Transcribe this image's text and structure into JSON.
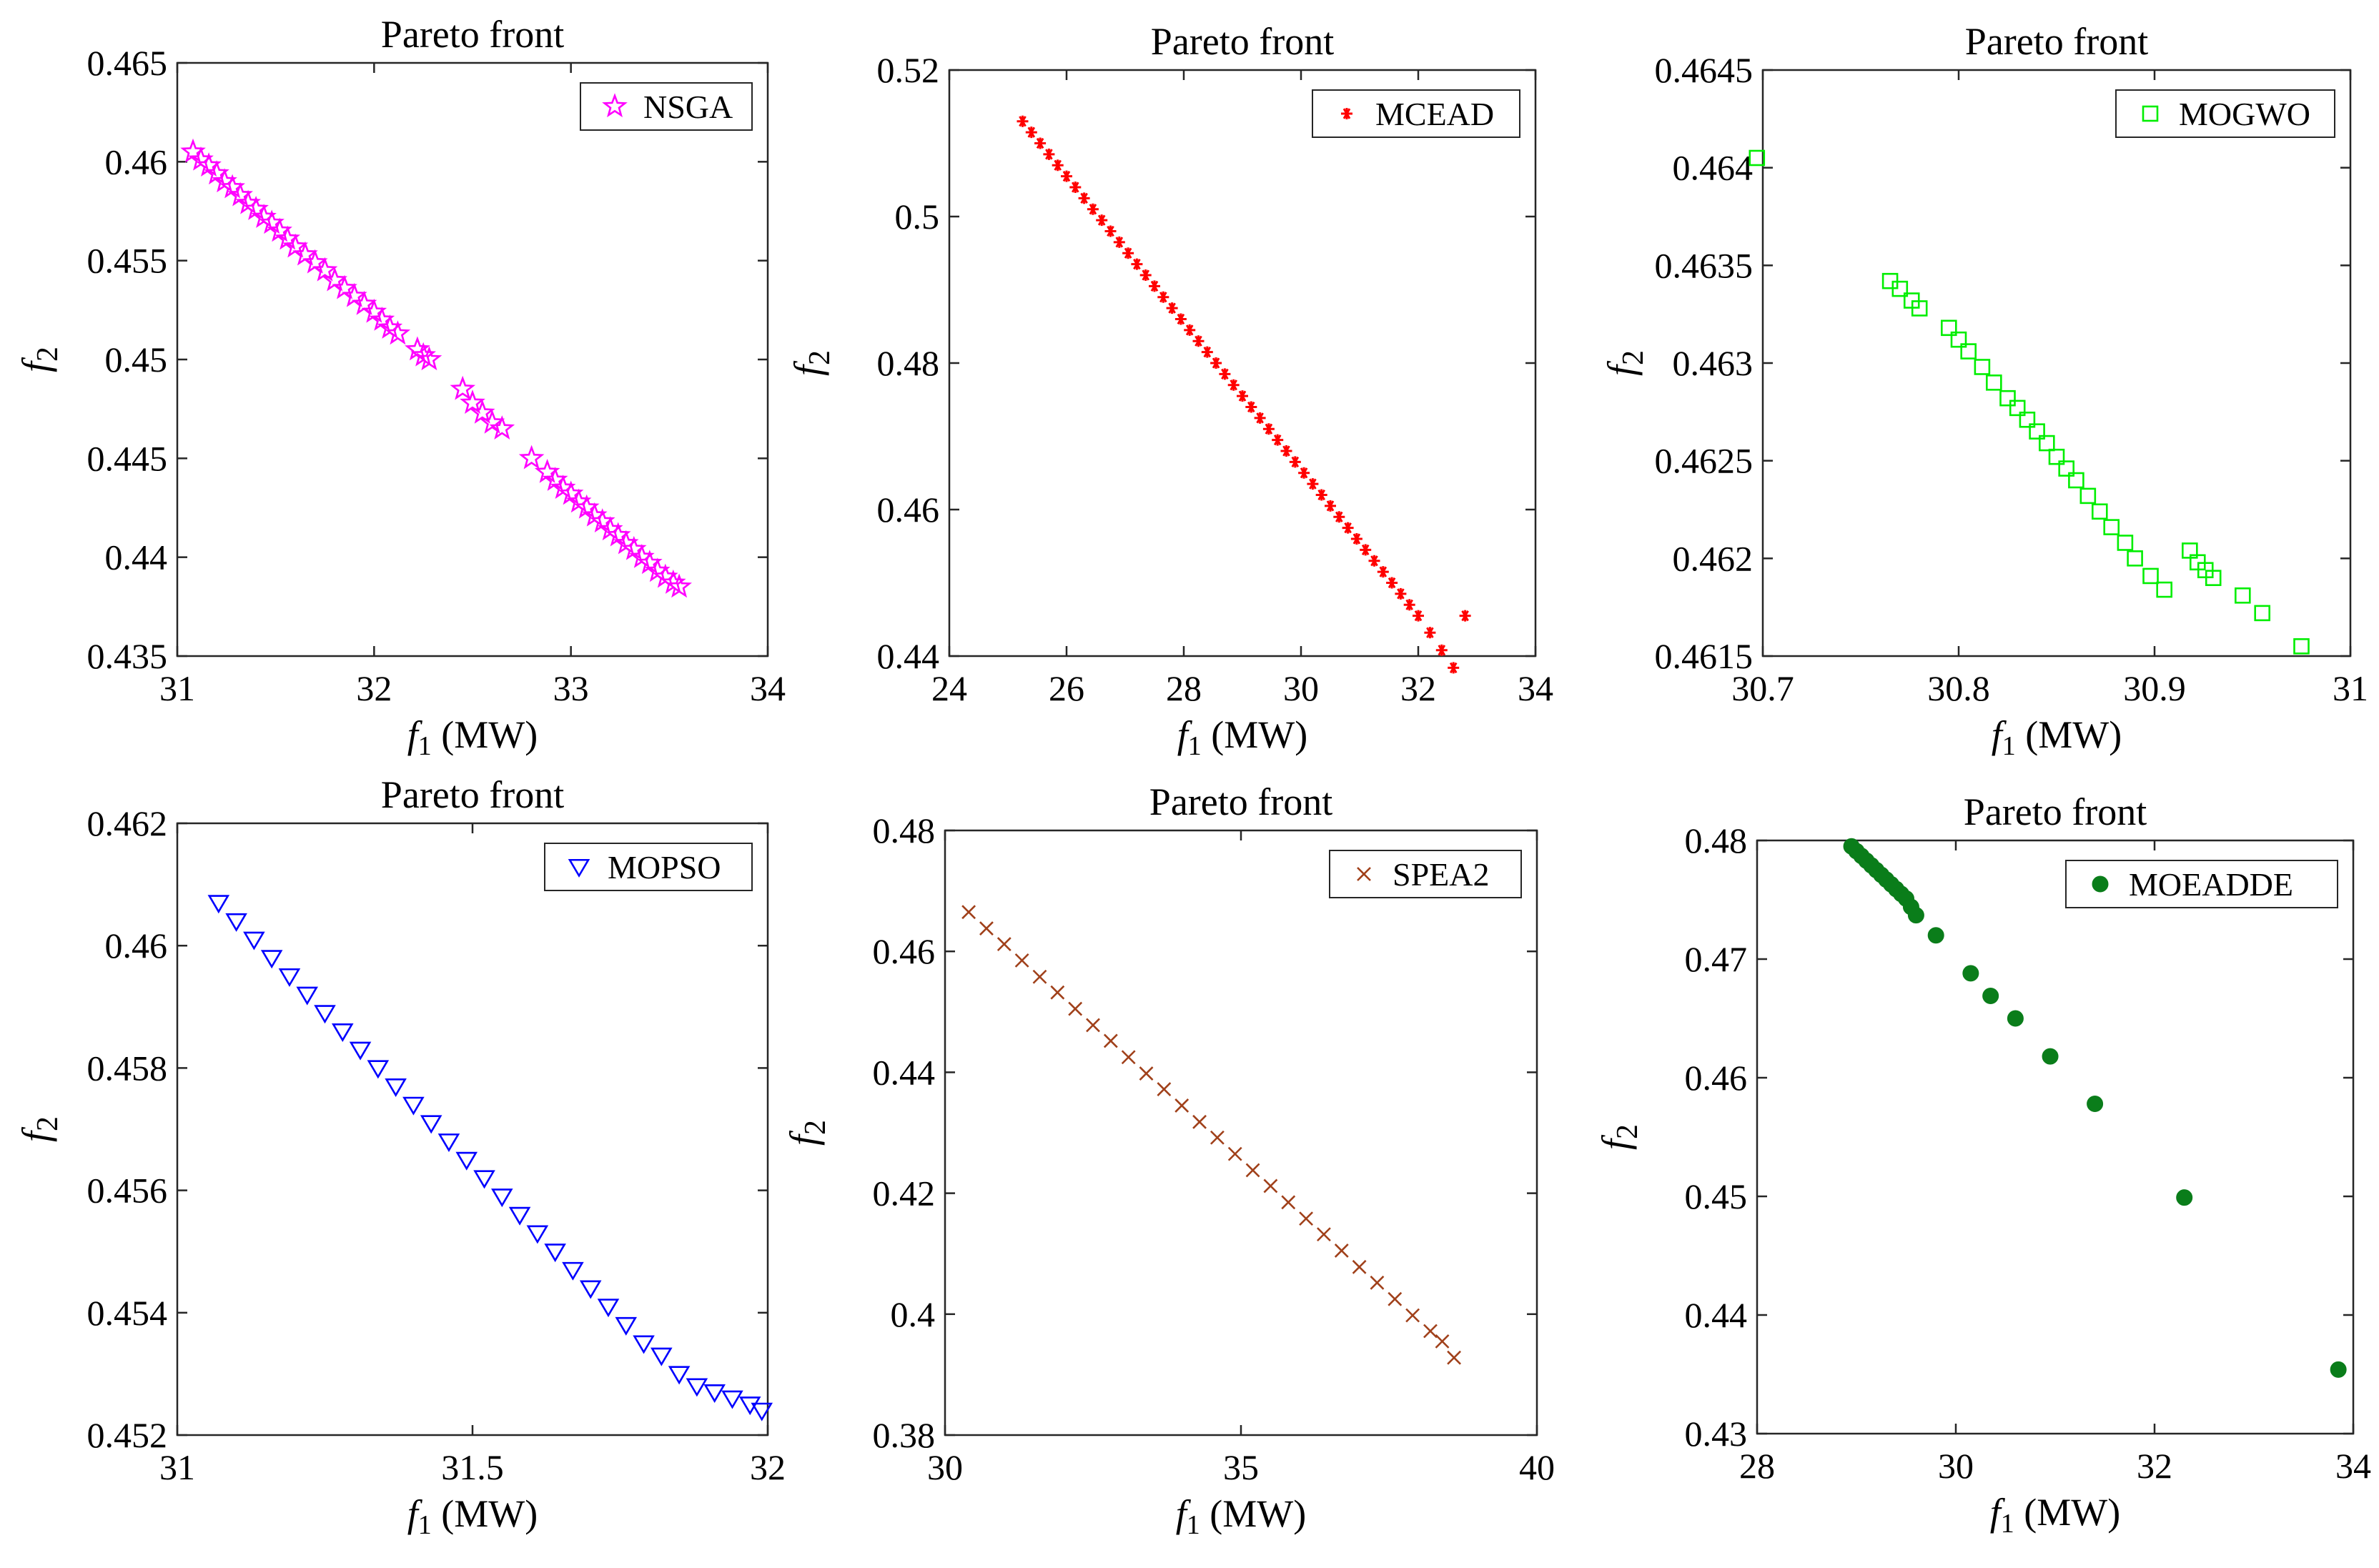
{
  "chart_data": [
    {
      "type": "scatter",
      "title": "Pareto front",
      "xlabel": "f1 (MW)",
      "ylabel": "f2",
      "xlim": [
        31,
        34
      ],
      "ylim": [
        0.435,
        0.465
      ],
      "xticks": [
        31,
        32,
        33,
        34
      ],
      "yticks": [
        0.435,
        0.44,
        0.445,
        0.45,
        0.455,
        0.46,
        0.465
      ],
      "xtick_labels": [
        "31",
        "32",
        "33",
        "34"
      ],
      "ytick_labels": [
        "0.435",
        "0.44",
        "0.445",
        "0.45",
        "0.455",
        "0.46",
        "0.465"
      ],
      "series": [
        {
          "name": "NSGA",
          "marker": "star",
          "color": "#ff00ff",
          "x": [
            31.08,
            31.12,
            31.16,
            31.2,
            31.24,
            31.28,
            31.32,
            31.36,
            31.4,
            31.44,
            31.48,
            31.52,
            31.56,
            31.6,
            31.65,
            31.7,
            31.75,
            31.8,
            31.85,
            31.9,
            31.95,
            32.0,
            32.04,
            32.08,
            32.12,
            32.22,
            32.25,
            32.28,
            32.45,
            32.5,
            32.55,
            32.6,
            32.65,
            32.8,
            32.88,
            32.92,
            32.96,
            33.0,
            33.04,
            33.08,
            33.12,
            33.16,
            33.2,
            33.24,
            33.28,
            33.32,
            33.36,
            33.4,
            33.44,
            33.48,
            33.52,
            33.55
          ],
          "y": [
            0.4605,
            0.4601,
            0.4598,
            0.4594,
            0.459,
            0.4587,
            0.4583,
            0.4579,
            0.4576,
            0.4572,
            0.4569,
            0.4565,
            0.4561,
            0.4557,
            0.4553,
            0.4549,
            0.4545,
            0.454,
            0.4536,
            0.4532,
            0.4528,
            0.4524,
            0.452,
            0.4516,
            0.4513,
            0.4505,
            0.4502,
            0.45,
            0.4485,
            0.4478,
            0.4473,
            0.4468,
            0.4465,
            0.445,
            0.4443,
            0.4439,
            0.4435,
            0.4432,
            0.4428,
            0.4425,
            0.4421,
            0.4418,
            0.4414,
            0.4411,
            0.4407,
            0.4404,
            0.44,
            0.4397,
            0.4393,
            0.439,
            0.4387,
            0.4385
          ]
        }
      ],
      "legend": "top-right"
    },
    {
      "type": "scatter",
      "title": "Pareto front",
      "xlabel": "f1 (MW)",
      "ylabel": "f2",
      "xlim": [
        24,
        34
      ],
      "ylim": [
        0.44,
        0.52
      ],
      "xticks": [
        24,
        26,
        28,
        30,
        32,
        34
      ],
      "yticks": [
        0.44,
        0.46,
        0.48,
        0.5,
        0.52
      ],
      "xtick_labels": [
        "24",
        "26",
        "28",
        "30",
        "32",
        "34"
      ],
      "ytick_labels": [
        "0.44",
        "0.46",
        "0.48",
        "0.5",
        "0.52"
      ],
      "series": [
        {
          "name": "MCEAD",
          "marker": "asterisk",
          "color": "#ff0000",
          "x": [
            25.25,
            25.4,
            25.55,
            25.7,
            25.85,
            26.0,
            26.15,
            26.3,
            26.45,
            26.6,
            26.75,
            26.9,
            27.05,
            27.2,
            27.35,
            27.5,
            27.65,
            27.8,
            27.95,
            28.1,
            28.25,
            28.4,
            28.55,
            28.7,
            28.85,
            29.0,
            29.15,
            29.3,
            29.45,
            29.6,
            29.75,
            29.9,
            30.05,
            30.2,
            30.35,
            30.5,
            30.65,
            30.8,
            30.95,
            31.1,
            31.25,
            31.4,
            31.55,
            31.7,
            31.85,
            32.0,
            32.2,
            32.4,
            32.6,
            32.8
          ],
          "y": [
            0.513,
            0.5115,
            0.51,
            0.5085,
            0.507,
            0.5055,
            0.504,
            0.5025,
            0.501,
            0.4995,
            0.498,
            0.4965,
            0.495,
            0.4935,
            0.492,
            0.4905,
            0.489,
            0.4875,
            0.486,
            0.4845,
            0.483,
            0.4815,
            0.48,
            0.4785,
            0.477,
            0.4755,
            0.474,
            0.4725,
            0.471,
            0.4695,
            0.468,
            0.4665,
            0.465,
            0.4635,
            0.462,
            0.4605,
            0.459,
            0.4575,
            0.456,
            0.4545,
            0.453,
            0.4515,
            0.45,
            0.4485,
            0.447,
            0.4455,
            0.4432,
            0.4408,
            0.4384,
            0.4455
          ]
        }
      ],
      "legend": "top-right"
    },
    {
      "type": "scatter",
      "title": "Pareto front",
      "xlabel": "f1 (MW)",
      "ylabel": "f2",
      "xlim": [
        30.7,
        31
      ],
      "ylim": [
        0.4615,
        0.4645
      ],
      "xticks": [
        30.7,
        30.8,
        30.9,
        31
      ],
      "yticks": [
        0.4615,
        0.462,
        0.4625,
        0.463,
        0.4635,
        0.464,
        0.4645
      ],
      "xtick_labels": [
        "30.7",
        "30.8",
        "30.9",
        "31"
      ],
      "ytick_labels": [
        "0.4615",
        "0.462",
        "0.4625",
        "0.463",
        "0.4635",
        "0.464",
        "0.4645"
      ],
      "series": [
        {
          "name": "MOGWO",
          "marker": "square",
          "color": "#00ee00",
          "x": [
            30.697,
            30.765,
            30.77,
            30.776,
            30.78,
            30.795,
            30.8,
            30.805,
            30.812,
            30.818,
            30.825,
            30.83,
            30.835,
            30.84,
            30.845,
            30.85,
            30.855,
            30.86,
            30.866,
            30.872,
            30.878,
            30.885,
            30.89,
            30.898,
            30.905,
            30.918,
            30.922,
            30.926,
            30.93,
            30.945,
            30.955,
            30.975
          ],
          "y": [
            0.46405,
            0.46342,
            0.46338,
            0.46332,
            0.46328,
            0.46318,
            0.46312,
            0.46306,
            0.46298,
            0.4629,
            0.46282,
            0.46277,
            0.46271,
            0.46265,
            0.46259,
            0.46252,
            0.46246,
            0.4624,
            0.46232,
            0.46224,
            0.46216,
            0.46208,
            0.462,
            0.46191,
            0.46184,
            0.46204,
            0.46198,
            0.46194,
            0.4619,
            0.46181,
            0.46172,
            0.46155
          ]
        }
      ],
      "legend": "top-right"
    },
    {
      "type": "scatter",
      "title": "Pareto front",
      "xlabel": "f1 (MW)",
      "ylabel": "f2",
      "xlim": [
        31,
        32
      ],
      "ylim": [
        0.452,
        0.462
      ],
      "xticks": [
        31,
        31.5,
        32
      ],
      "yticks": [
        0.452,
        0.454,
        0.456,
        0.458,
        0.46,
        0.462
      ],
      "xtick_labels": [
        "31",
        "31.5",
        "32"
      ],
      "ytick_labels": [
        "0.452",
        "0.454",
        "0.456",
        "0.458",
        "0.46",
        "0.462"
      ],
      "series": [
        {
          "name": "MOPSO",
          "marker": "triangle-down",
          "color": "#0000ff",
          "x": [
            31.07,
            31.1,
            31.13,
            31.16,
            31.19,
            31.22,
            31.25,
            31.28,
            31.31,
            31.34,
            31.37,
            31.4,
            31.43,
            31.46,
            31.49,
            31.52,
            31.55,
            31.58,
            31.61,
            31.64,
            31.67,
            31.7,
            31.73,
            31.76,
            31.79,
            31.82,
            31.85,
            31.88,
            31.91,
            31.94,
            31.97,
            31.99
          ],
          "y": [
            0.4607,
            0.4604,
            0.4601,
            0.4598,
            0.4595,
            0.4592,
            0.4589,
            0.4586,
            0.4583,
            0.458,
            0.4577,
            0.4574,
            0.4571,
            0.4568,
            0.4565,
            0.4562,
            0.4559,
            0.4556,
            0.4553,
            0.455,
            0.4547,
            0.4544,
            0.4541,
            0.4538,
            0.4535,
            0.4533,
            0.453,
            0.4528,
            0.4527,
            0.4526,
            0.4525,
            0.4524
          ]
        }
      ],
      "legend": "top-right"
    },
    {
      "type": "scatter",
      "title": "Pareto front",
      "xlabel": "f1 (MW)",
      "ylabel": "f2",
      "xlim": [
        30,
        40
      ],
      "ylim": [
        0.38,
        0.48
      ],
      "xticks": [
        30,
        35,
        40
      ],
      "yticks": [
        0.38,
        0.4,
        0.42,
        0.44,
        0.46,
        0.48
      ],
      "xtick_labels": [
        "30",
        "35",
        "40"
      ],
      "ytick_labels": [
        "0.38",
        "0.4",
        "0.42",
        "0.44",
        "0.46",
        "0.48"
      ],
      "series": [
        {
          "name": "SPEA2",
          "marker": "x",
          "color": "#a0401a",
          "x": [
            30.4,
            30.7,
            31.0,
            31.3,
            31.6,
            31.9,
            32.2,
            32.5,
            32.8,
            33.1,
            33.4,
            33.7,
            34.0,
            34.3,
            34.6,
            34.9,
            35.2,
            35.5,
            35.8,
            36.1,
            36.4,
            36.7,
            37.0,
            37.3,
            37.6,
            37.9,
            38.2,
            38.4,
            38.6
          ],
          "y": [
            0.4665,
            0.4638,
            0.4612,
            0.4585,
            0.4558,
            0.4532,
            0.4505,
            0.4478,
            0.4452,
            0.4425,
            0.4398,
            0.4372,
            0.4345,
            0.4318,
            0.4292,
            0.4265,
            0.4238,
            0.4212,
            0.4185,
            0.4158,
            0.4132,
            0.4105,
            0.4078,
            0.4052,
            0.4025,
            0.3998,
            0.3972,
            0.3955,
            0.3928
          ]
        }
      ],
      "legend": "top-right"
    },
    {
      "type": "scatter",
      "title": "Pareto front",
      "xlabel": "f1 (MW)",
      "ylabel": "f2",
      "xlim": [
        28,
        34
      ],
      "ylim": [
        0.43,
        0.48
      ],
      "xticks": [
        28,
        30,
        32,
        34
      ],
      "yticks": [
        0.43,
        0.44,
        0.45,
        0.46,
        0.47,
        0.48
      ],
      "xtick_labels": [
        "28",
        "30",
        "32",
        "34"
      ],
      "ytick_labels": [
        "0.43",
        "0.44",
        "0.45",
        "0.46",
        "0.47",
        "0.48"
      ],
      "series": [
        {
          "name": "MOEADDE",
          "marker": "filled-circle",
          "color": "#0a7d1a",
          "x": [
            28.95,
            29.0,
            29.05,
            29.1,
            29.15,
            29.2,
            29.25,
            29.3,
            29.35,
            29.4,
            29.45,
            29.5,
            29.55,
            29.6,
            29.8,
            30.15,
            30.35,
            30.6,
            30.95,
            31.4,
            32.3,
            33.85
          ],
          "y": [
            0.4795,
            0.4791,
            0.4787,
            0.4783,
            0.4779,
            0.4775,
            0.4771,
            0.4767,
            0.4763,
            0.4759,
            0.4755,
            0.4751,
            0.4744,
            0.4737,
            0.472,
            0.4688,
            0.4669,
            0.465,
            0.4618,
            0.4578,
            0.4499,
            0.4354
          ]
        }
      ],
      "legend": "top-right"
    }
  ]
}
